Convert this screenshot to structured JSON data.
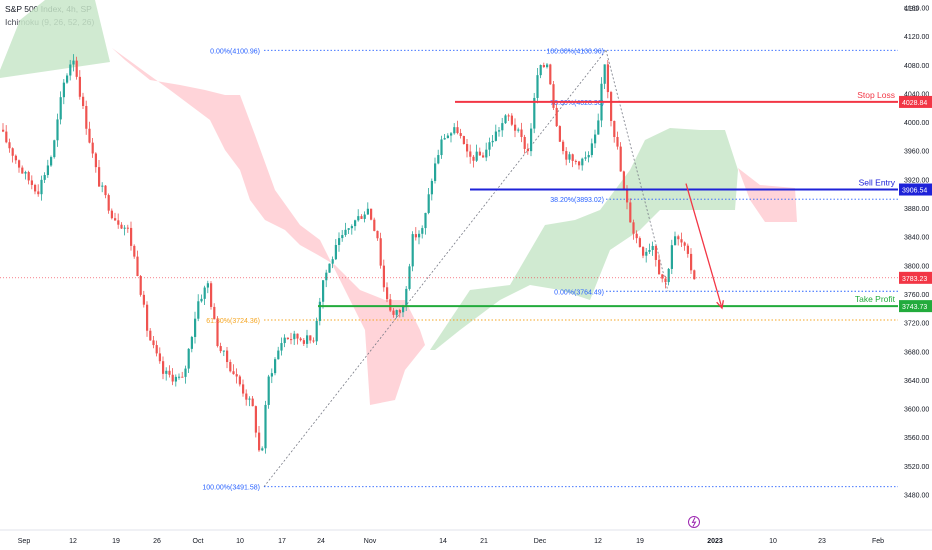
{
  "header": {
    "title": "S&P 500 Index, 4h, SP",
    "indicator": "Ichimoku (9, 26, 52, 26)"
  },
  "chart_data": {
    "type": "candlestick",
    "currency_label": "USD",
    "y_ticks": [
      4160,
      4120,
      4080,
      4040,
      4000,
      3960,
      3920,
      3880,
      3840,
      3800,
      3760,
      3720,
      3680,
      3640,
      3600,
      3560,
      3520,
      3480
    ],
    "y_tick_labels": [
      "4160.00",
      "4120.00",
      "4080.00",
      "4040.00",
      "4000.00",
      "3960.00",
      "3920.00",
      "3880.00",
      "3840.00",
      "3800.00",
      "3760.00",
      "3720.00",
      "3680.00",
      "3640.00",
      "3600.00",
      "3560.00",
      "3520.00",
      "3480.00"
    ],
    "ylim": [
      3466,
      4182
    ],
    "x_labels": [
      "Sep",
      "12",
      "19",
      "26",
      "Oct",
      "10",
      "17",
      "24",
      "Nov",
      "14",
      "21",
      "Dec",
      "12",
      "19",
      "2023",
      "10",
      "23",
      "Feb"
    ],
    "x_label_bold": "2023",
    "levels": [
      {
        "name": "Stop Loss",
        "value": 4028.84,
        "label": "4028.84",
        "color": "#f23645"
      },
      {
        "name": "Sell Entry",
        "value": 3906.54,
        "label": "3906.54",
        "color": "#1e22d8"
      },
      {
        "name": "Take Profit",
        "value": 3743.73,
        "label": "3743.73",
        "color": "#22ab3c"
      }
    ],
    "current_price": {
      "value": 3783.23,
      "label": "3783.23",
      "color": "#f23645"
    },
    "fib_labels": [
      {
        "text": "0.00%(4100.96)",
        "value": 4100.96,
        "color": "#2962ff"
      },
      {
        "text": "100.00%(4100.96)",
        "value": 4100.96,
        "color": "#2962ff"
      },
      {
        "text": "78.60%(4028.96)",
        "value": 4028.96,
        "color": "#2962ff"
      },
      {
        "text": "38.20%(3893.02)",
        "value": 3893.02,
        "color": "#2962ff"
      },
      {
        "text": "0.00%(3764.49)",
        "value": 3764.49,
        "color": "#2962ff"
      },
      {
        "text": "61.80%(3724.36)",
        "value": 3724.36,
        "color": "#f5a623"
      },
      {
        "text": "100.00%(3491.58)",
        "value": 3491.58,
        "color": "#2962ff"
      }
    ],
    "colors": {
      "up": "#26a69a",
      "down": "#ef5350",
      "cloud_bull": "#c8e6c9",
      "cloud_bear": "#ffcdd2",
      "axis_text": "#131722"
    }
  }
}
